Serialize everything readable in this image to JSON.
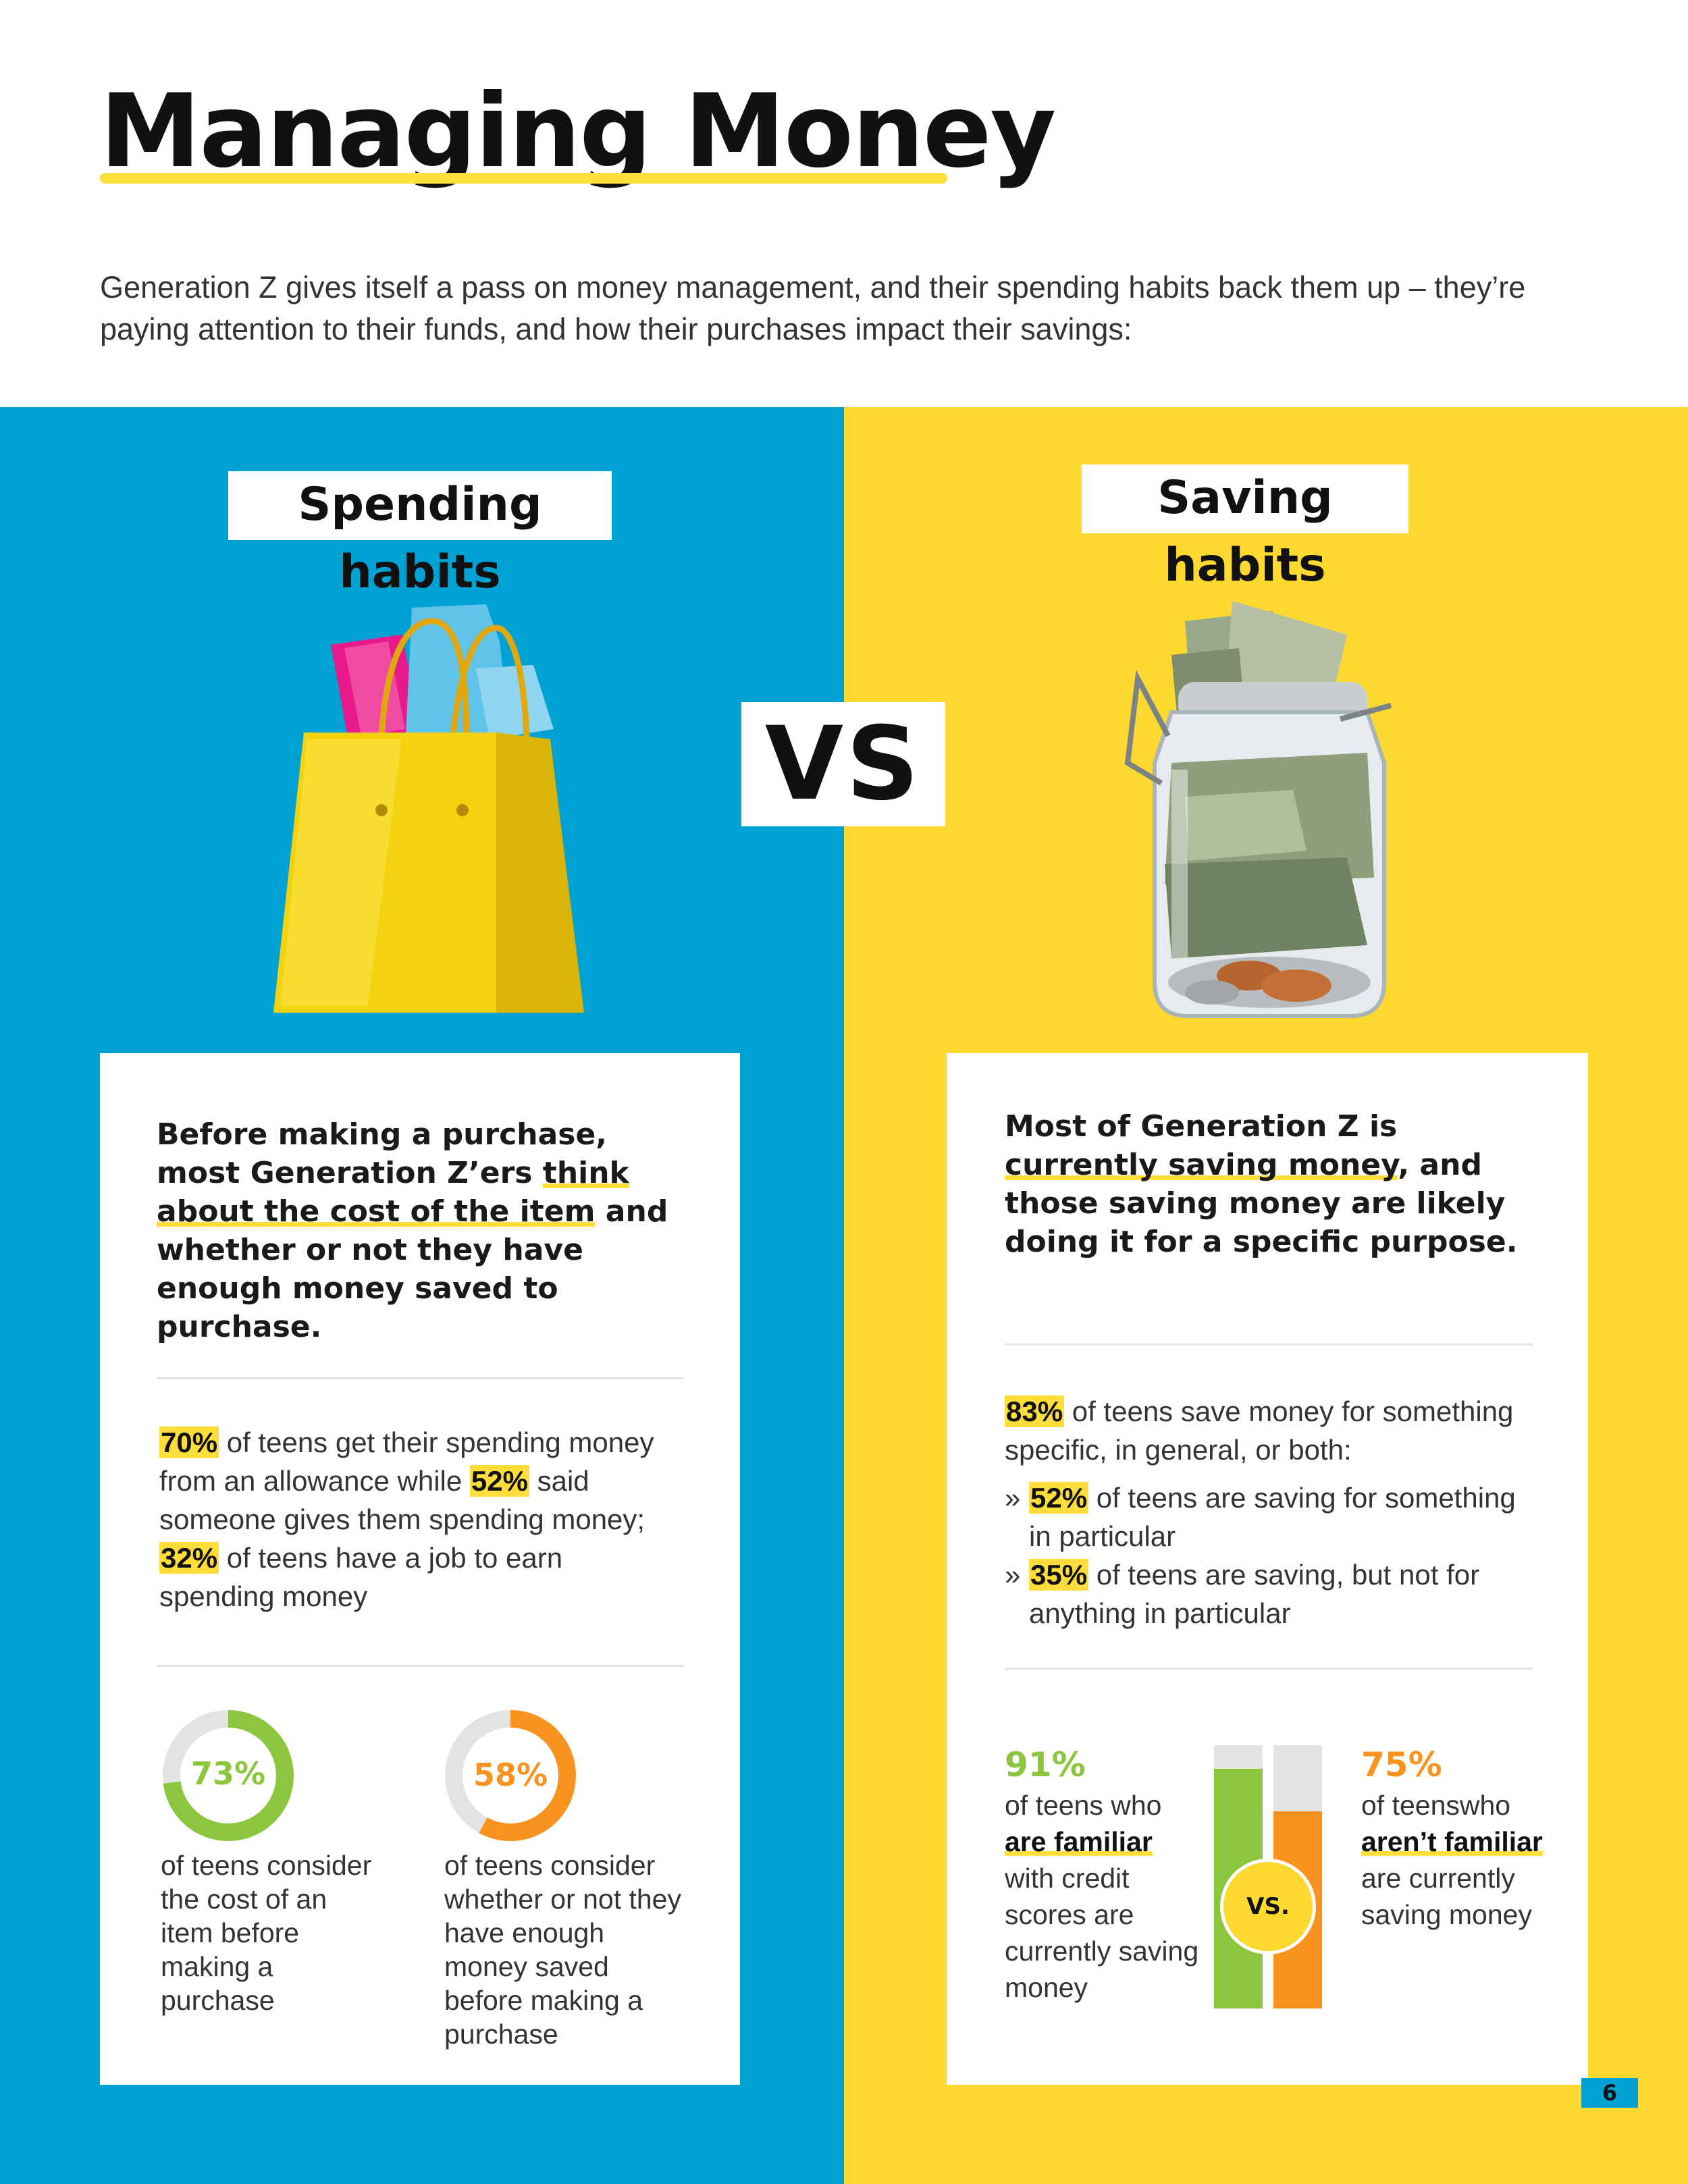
{
  "header": {
    "title": "Managing Money",
    "intro": "Generation Z gives itself a pass on money management, and their spending habits back them up – they’re paying attention to their funds, and how their purchases impact their savings:"
  },
  "vs_label": "VS",
  "spending": {
    "heading": "Spending habits",
    "image_icon": "shopping-bag-icon",
    "lead_1": "Before making a purchase, most Generation Z’ers ",
    "lead_ul": "think about the cost of the item",
    "lead_2": " and whether or not they have enough money saved to purchase.",
    "stat": {
      "p1": "70%",
      "t1": " of teens get their spending money from an allowance while ",
      "p2": "52%",
      "t2": " said someone gives them spending money; ",
      "p3": "32%",
      "t3": " of teens have a job to earn spending money"
    },
    "donuts": [
      {
        "value": 73,
        "label": "73%",
        "caption": "of teens consider the cost of an item before making a purchase",
        "color": "#8cc63f"
      },
      {
        "value": 58,
        "label": "58%",
        "caption": "of teens consider whether or not they have enough money saved before making a purchase",
        "color": "#f7931e"
      }
    ]
  },
  "saving": {
    "heading": "Saving habits",
    "image_icon": "money-jar-icon",
    "lead_1": "Most of Generation Z is ",
    "lead_ul": "currently saving money",
    "lead_2": ", and those saving money are likely doing it for a specific purpose.",
    "stat": {
      "p1": "83%",
      "t1": " of teens save money for something specific, in general, or both:",
      "b1p": "52%",
      "b1t": " of teens are saving for something in particular",
      "b2p": "35%",
      "b2t": " of teens are saving, but not for anything in particular"
    },
    "bars": {
      "left": {
        "value": 91,
        "label": "91%",
        "pre": "of teens who",
        "ul": "are familiar",
        "post": "with credit scores are currently saving money",
        "color": "#8cc63f"
      },
      "right": {
        "value": 75,
        "label": "75%",
        "pre": "of teenswho",
        "ul": "aren’t familiar",
        "post": "are currently saving money",
        "color": "#f7931e"
      },
      "vs": "VS."
    }
  },
  "page_number": "6",
  "colors": {
    "blue": "#00a1d3",
    "yellow": "#fdd930",
    "highlight": "#ffdd3a",
    "green": "#8cc63f",
    "orange": "#f7931e"
  }
}
